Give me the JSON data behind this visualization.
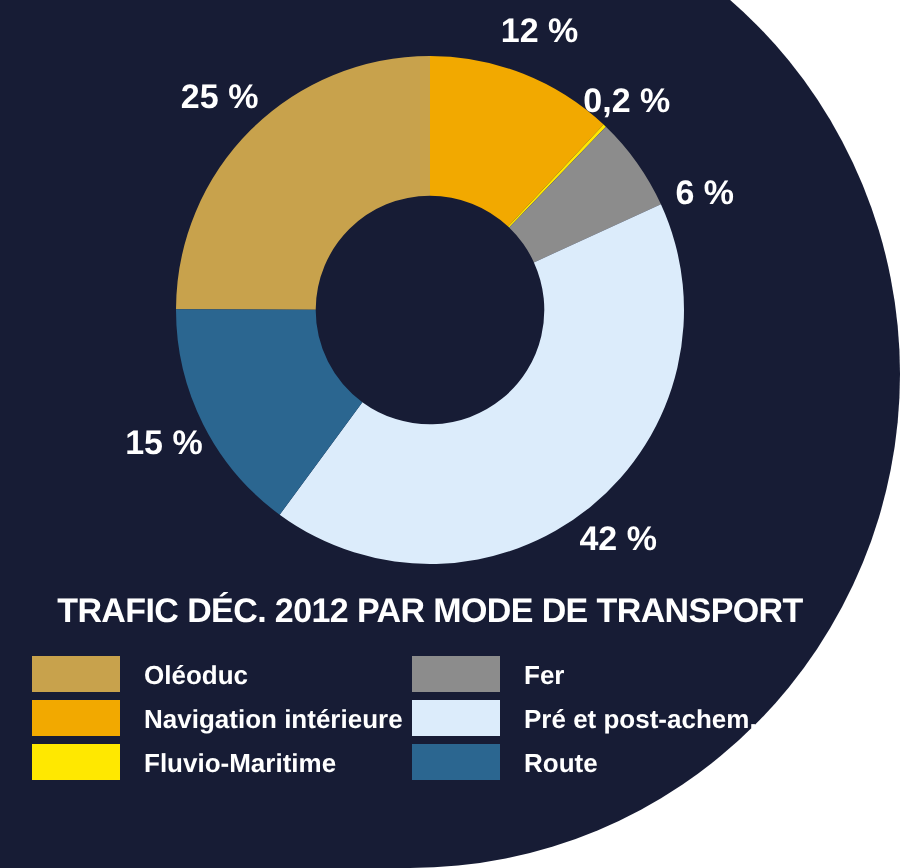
{
  "chart_data": {
    "type": "donut",
    "title": "TRAFIC DÉC. 2012 PAR MODE DE TRANSPORT",
    "categories": [
      "Oléoduc",
      "Navigation intérieure",
      "Fluvio-Maritime",
      "Fer",
      "Pré et post-achem.",
      "Route"
    ],
    "values": [
      25,
      12,
      0.2,
      6,
      42,
      15
    ],
    "value_labels": [
      "25 %",
      "12 %",
      "0,2 %",
      "6 %",
      "42 %",
      "15 %"
    ],
    "colors": [
      "#c8a24c",
      "#f2a900",
      "#ffe800",
      "#8c8c8c",
      "#dcecfb",
      "#2b6690"
    ],
    "legend": "bottom"
  }
}
